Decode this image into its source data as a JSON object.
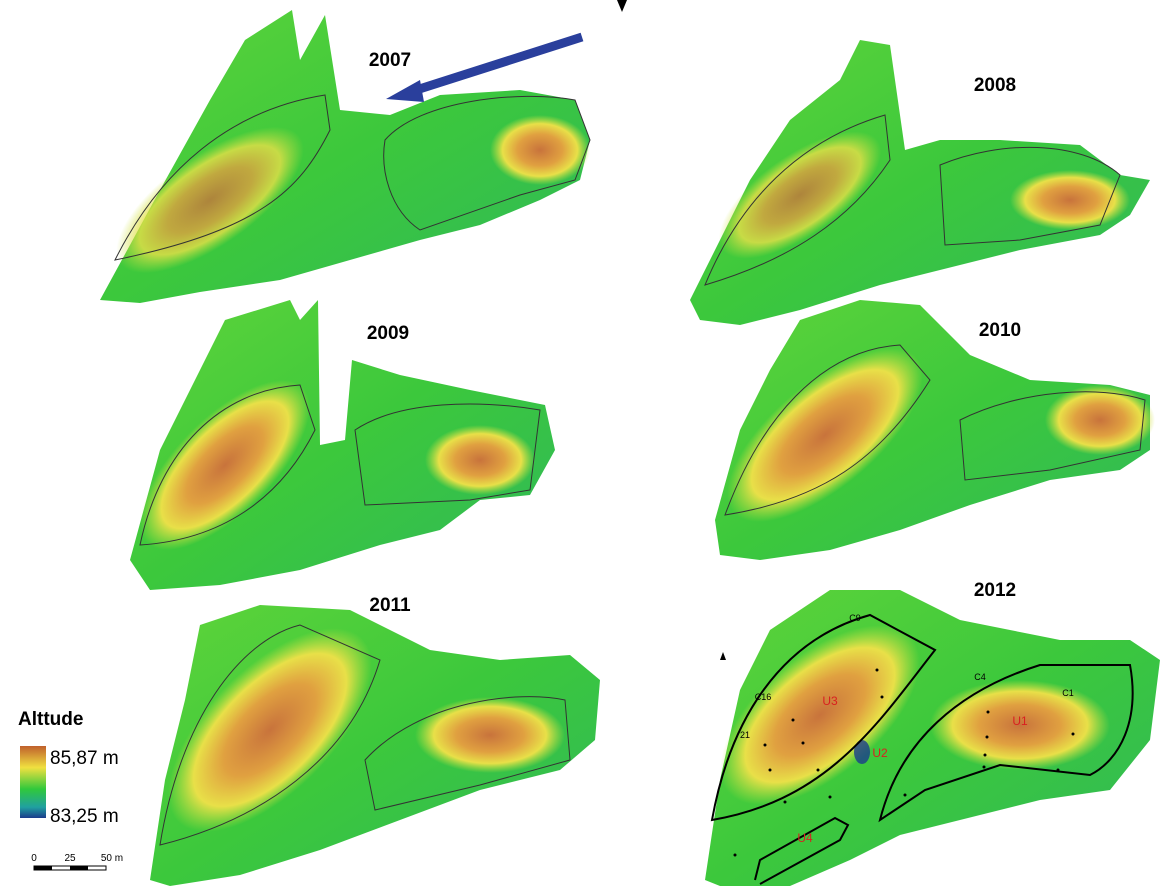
{
  "panels": [
    {
      "year": "2007"
    },
    {
      "year": "2008"
    },
    {
      "year": "2009"
    },
    {
      "year": "2010"
    },
    {
      "year": "2011"
    },
    {
      "year": "2012"
    }
  ],
  "legend": {
    "title": "Alttude",
    "max": "85,87 m",
    "min": "83,25 m"
  },
  "scale_bar": {
    "labels": [
      "0",
      "25",
      "50 m"
    ]
  },
  "labels_2012": {
    "units": [
      "U3",
      "U2",
      "U1",
      "U4"
    ],
    "points": [
      "C9",
      "C16",
      "21",
      "C4",
      "C1"
    ]
  }
}
